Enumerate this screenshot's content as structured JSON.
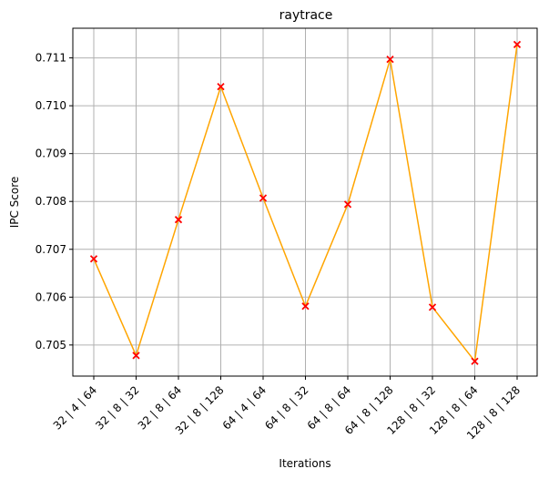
{
  "chart_data": {
    "type": "line",
    "title": "raytrace",
    "xlabel": "Iterations",
    "ylabel": "IPC Score",
    "categories": [
      "32 | 4 | 64",
      "32 | 8 | 32",
      "32 | 8 | 64",
      "32 | 8 | 128",
      "64 | 4 | 64",
      "64 | 8 | 32",
      "64 | 8 | 64",
      "64 | 8 | 128",
      "128 | 8 | 32",
      "128 | 8 | 64",
      "128 | 8 | 128"
    ],
    "series": [
      {
        "values": [
          0.7068,
          0.70478,
          0.70762,
          0.7104,
          0.70807,
          0.70581,
          0.70794,
          0.71097,
          0.70579,
          0.70466,
          0.71128
        ],
        "line_color": "#ffa500",
        "marker": "x",
        "marker_color": "#ff0000"
      }
    ],
    "ylim": [
      0.70435,
      0.71162
    ],
    "yticks": [
      "0.705",
      "0.706",
      "0.707",
      "0.708",
      "0.709",
      "0.710",
      "0.711"
    ],
    "grid": true,
    "legend": "none"
  }
}
